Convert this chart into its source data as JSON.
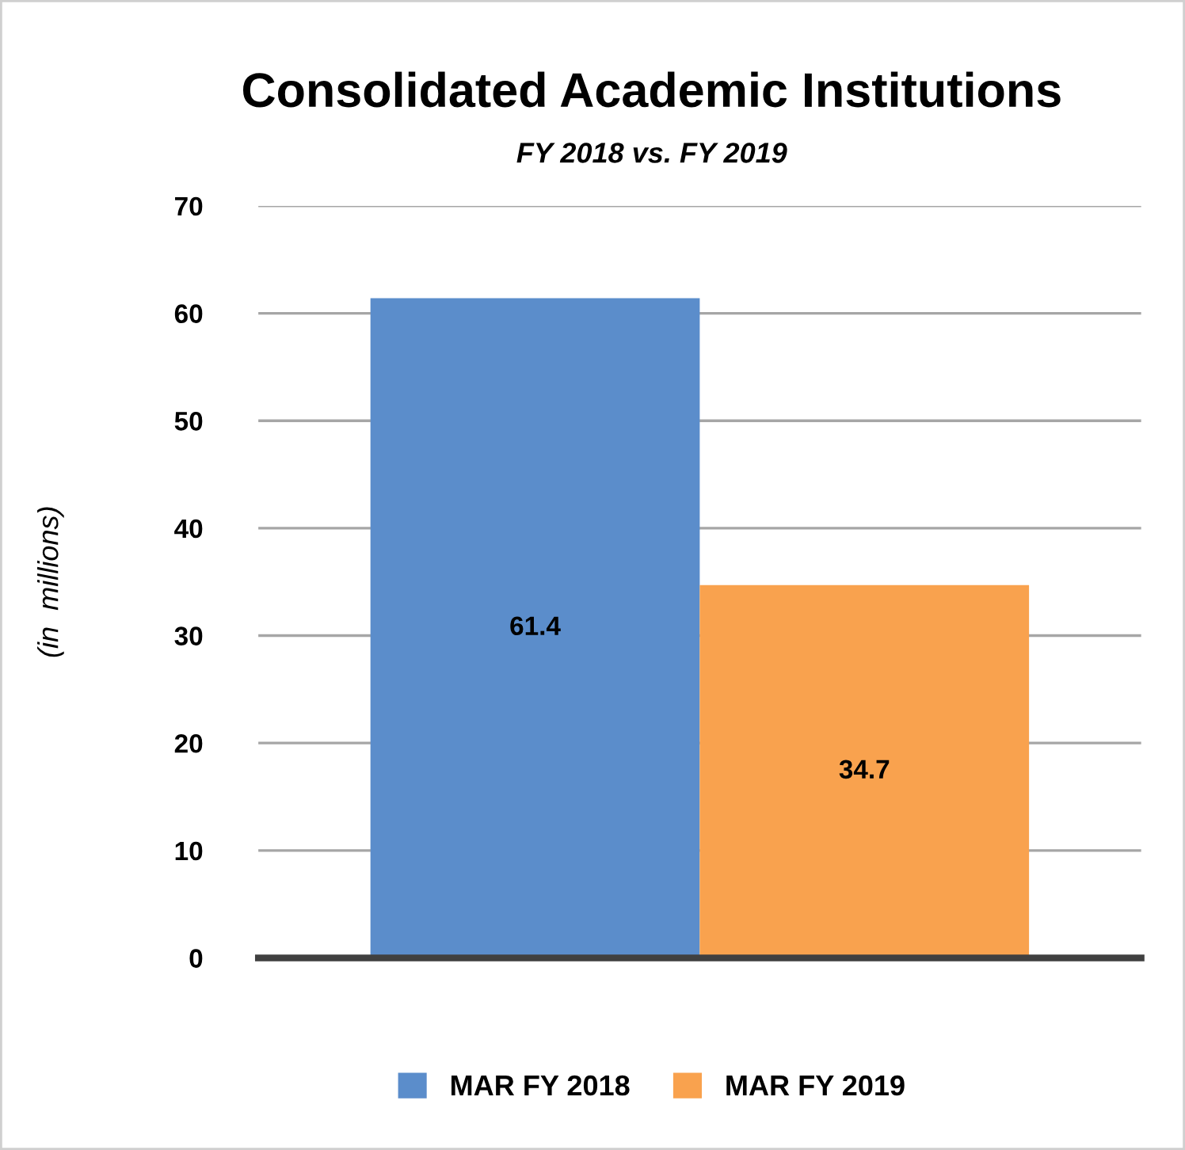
{
  "chart_data": {
    "type": "bar",
    "title": "Consolidated Academic Institutions",
    "subtitle": "FY 2018 vs. FY 2019",
    "ylabel": "(in  millions)",
    "categories": [
      null
    ],
    "series": [
      {
        "name": "MAR FY 2018",
        "color": "#5b8dcb",
        "values": [
          61.4
        ]
      },
      {
        "name": "MAR FY 2019",
        "color": "#f9a24e",
        "values": [
          34.7
        ]
      }
    ],
    "ylim": [
      0,
      70
    ],
    "yticks": [
      0,
      10,
      20,
      30,
      40,
      50,
      60,
      70
    ],
    "grid": "y",
    "legend": "bottom",
    "data_labels": true
  }
}
